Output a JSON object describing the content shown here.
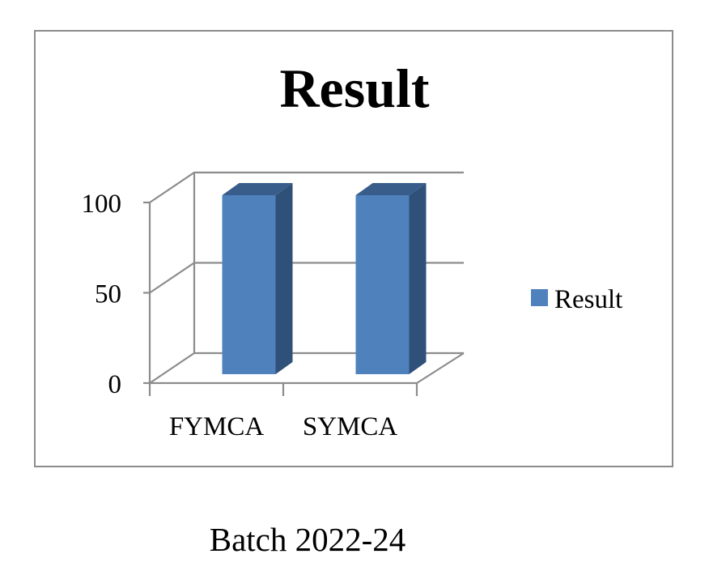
{
  "colors": {
    "bar_front": "#4f81bd",
    "bar_side": "#2f5079",
    "bar_top": "#385d8a",
    "grid": "#8c8c8c",
    "frame": "#8c8c8c"
  },
  "caption": "Batch 2022-24",
  "chart_data": {
    "type": "bar",
    "style": "3d-column",
    "title": "Result",
    "categories": [
      "FYMCA",
      "SYMCA"
    ],
    "series": [
      {
        "name": "Result",
        "values": [
          100,
          100
        ]
      }
    ],
    "ylim": [
      0,
      100
    ],
    "yticks": [
      "0",
      "50",
      "100"
    ],
    "grid": true,
    "legend": "right"
  }
}
